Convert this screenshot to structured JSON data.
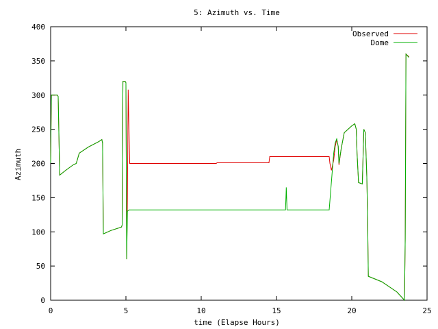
{
  "chart_data": {
    "type": "line",
    "title": "5: Azimuth vs. Time",
    "xlabel": "time (Elapse Hours)",
    "ylabel": "Azimuth",
    "xlim": [
      0,
      25
    ],
    "ylim": [
      0,
      400
    ],
    "x_ticks": [
      0,
      5,
      10,
      15,
      20,
      25
    ],
    "y_ticks": [
      0,
      50,
      100,
      150,
      200,
      250,
      300,
      350,
      400
    ],
    "grid": false,
    "legend_position": "top-right",
    "series": [
      {
        "name": "Observed",
        "color": "#e00000",
        "points": [
          [
            0,
            201
          ],
          [
            0.05,
            300
          ],
          [
            0.45,
            300
          ],
          [
            0.5,
            298
          ],
          [
            0.6,
            183
          ],
          [
            1.0,
            190
          ],
          [
            1.5,
            198
          ],
          [
            1.7,
            200
          ],
          [
            1.9,
            215
          ],
          [
            2.5,
            224
          ],
          [
            3.2,
            232
          ],
          [
            3.4,
            235
          ],
          [
            3.45,
            230
          ],
          [
            3.5,
            97
          ],
          [
            4.0,
            102
          ],
          [
            4.7,
            107
          ],
          [
            4.75,
            110
          ],
          [
            4.8,
            320
          ],
          [
            4.95,
            320
          ],
          [
            5.0,
            318
          ],
          [
            5.05,
            60
          ],
          [
            5.1,
            150
          ],
          [
            5.15,
            308
          ],
          [
            5.25,
            200
          ],
          [
            11.0,
            200
          ],
          [
            11.05,
            201
          ],
          [
            14.5,
            201
          ],
          [
            14.55,
            210
          ],
          [
            18.5,
            210
          ],
          [
            18.55,
            200
          ],
          [
            18.65,
            190
          ],
          [
            18.8,
            205
          ],
          [
            18.9,
            225
          ],
          [
            19.0,
            235
          ],
          [
            19.1,
            225
          ],
          [
            19.15,
            198
          ],
          [
            19.3,
            222
          ],
          [
            19.5,
            245
          ],
          [
            20.0,
            255
          ],
          [
            20.2,
            258
          ],
          [
            20.3,
            250
          ],
          [
            20.35,
            215
          ],
          [
            20.45,
            172
          ],
          [
            20.7,
            170
          ],
          [
            20.8,
            250
          ],
          [
            20.9,
            245
          ],
          [
            21.0,
            180
          ],
          [
            21.05,
            125
          ],
          [
            21.1,
            35
          ],
          [
            22.0,
            27
          ],
          [
            23.0,
            12
          ],
          [
            23.5,
            0
          ],
          [
            23.55,
            90
          ],
          [
            23.6,
            360
          ],
          [
            23.8,
            356
          ]
        ]
      },
      {
        "name": "Dome",
        "color": "#00b000",
        "points": [
          [
            0,
            201
          ],
          [
            0.05,
            300
          ],
          [
            0.45,
            300
          ],
          [
            0.5,
            298
          ],
          [
            0.6,
            183
          ],
          [
            1.0,
            190
          ],
          [
            1.5,
            198
          ],
          [
            1.7,
            200
          ],
          [
            1.9,
            215
          ],
          [
            2.5,
            224
          ],
          [
            3.2,
            232
          ],
          [
            3.4,
            235
          ],
          [
            3.45,
            230
          ],
          [
            3.5,
            97
          ],
          [
            4.0,
            102
          ],
          [
            4.7,
            107
          ],
          [
            4.75,
            110
          ],
          [
            4.8,
            320
          ],
          [
            4.95,
            320
          ],
          [
            5.0,
            318
          ],
          [
            5.05,
            60
          ],
          [
            5.1,
            130
          ],
          [
            5.2,
            132
          ],
          [
            15.6,
            132
          ],
          [
            15.65,
            165
          ],
          [
            15.7,
            132
          ],
          [
            18.5,
            132
          ],
          [
            18.6,
            160
          ],
          [
            18.8,
            215
          ],
          [
            18.9,
            230
          ],
          [
            19.0,
            236
          ],
          [
            19.1,
            225
          ],
          [
            19.15,
            200
          ],
          [
            19.3,
            222
          ],
          [
            19.5,
            245
          ],
          [
            20.0,
            255
          ],
          [
            20.2,
            258
          ],
          [
            20.3,
            250
          ],
          [
            20.35,
            215
          ],
          [
            20.45,
            172
          ],
          [
            20.7,
            170
          ],
          [
            20.8,
            250
          ],
          [
            20.9,
            245
          ],
          [
            21.0,
            180
          ],
          [
            21.05,
            120
          ],
          [
            21.1,
            35
          ],
          [
            22.0,
            27
          ],
          [
            23.0,
            12
          ],
          [
            23.5,
            0
          ],
          [
            23.55,
            90
          ],
          [
            23.6,
            360
          ],
          [
            23.8,
            355
          ]
        ]
      }
    ]
  }
}
